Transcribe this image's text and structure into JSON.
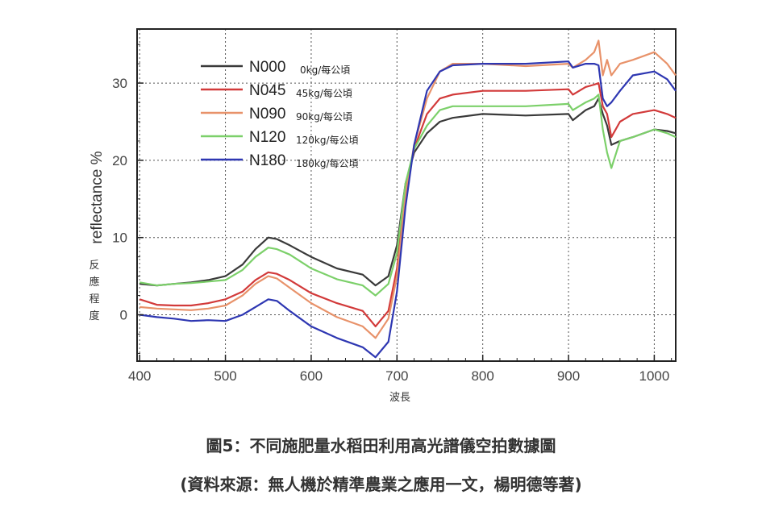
{
  "chart_data": {
    "type": "line",
    "title": "",
    "xlabel": "波長",
    "ylabel": "reflectance %",
    "ylabel_zh": [
      "反",
      "應",
      "程",
      "度"
    ],
    "xlim": [
      397,
      1025
    ],
    "ylim": [
      -6,
      37
    ],
    "xticks": [
      400,
      500,
      600,
      700,
      800,
      900,
      1000
    ],
    "yticks": [
      0,
      10,
      20,
      30
    ],
    "xtick_labels": [
      "400",
      "500",
      "600",
      "700",
      "800",
      "900",
      "1000"
    ],
    "ytick_labels": [
      "0",
      "10",
      "20",
      "30"
    ],
    "grid": true,
    "legend_position": "top-left",
    "x": [
      400,
      420,
      440,
      460,
      480,
      500,
      520,
      535,
      550,
      560,
      575,
      600,
      630,
      660,
      675,
      690,
      700,
      710,
      720,
      735,
      750,
      765,
      800,
      850,
      900,
      905,
      920,
      930,
      935,
      940,
      945,
      950,
      960,
      975,
      1000,
      1015,
      1025
    ],
    "series": [
      {
        "name": "N000",
        "desc": "0kg/每公頃",
        "color": "#3a3a3a",
        "values": [
          4,
          3.8,
          4,
          4.2,
          4.5,
          5,
          6.5,
          8.5,
          10,
          9.8,
          9,
          7.5,
          6,
          5.2,
          3.8,
          5,
          9,
          17,
          21,
          23.5,
          25,
          25.5,
          26,
          25.8,
          26,
          25.2,
          26.5,
          27,
          28,
          26,
          24.5,
          22,
          22.5,
          23,
          24,
          23.8,
          23.5
        ]
      },
      {
        "name": "N045",
        "desc": "45kg/每公頃",
        "color": "#d23a3a",
        "values": [
          2,
          1.3,
          1.2,
          1.2,
          1.5,
          2,
          3,
          4.5,
          5.5,
          5.3,
          4.5,
          2.8,
          1.5,
          0.5,
          -1.5,
          0.5,
          6,
          16,
          21.5,
          26,
          28,
          28.5,
          29,
          29,
          29.2,
          28.5,
          29.5,
          29.8,
          30,
          27,
          26,
          23,
          25,
          26,
          26.5,
          26,
          25.5
        ]
      },
      {
        "name": "N090",
        "desc": "90kg/每公頃",
        "color": "#e8926a",
        "values": [
          1,
          0.8,
          0.7,
          0.6,
          0.8,
          1.2,
          2.5,
          4,
          5,
          4.7,
          3.5,
          1.5,
          -0.3,
          -1.5,
          -3,
          -0.5,
          5,
          15.5,
          22,
          28,
          31.5,
          32.5,
          32.5,
          32.2,
          32.5,
          32,
          33,
          34,
          35.5,
          31,
          33,
          31,
          32.5,
          33,
          34,
          32.5,
          31
        ]
      },
      {
        "name": "N120",
        "desc": "120kg/每公頃",
        "color": "#7cd06a",
        "values": [
          4.2,
          3.8,
          4,
          4.1,
          4.3,
          4.5,
          5.8,
          7.5,
          8.7,
          8.5,
          7.8,
          6,
          4.6,
          3.8,
          2.5,
          4,
          8,
          17,
          21.5,
          24.5,
          26.5,
          27,
          27,
          27,
          27.3,
          26.5,
          27.5,
          28,
          28.5,
          24,
          21,
          19,
          22.5,
          23,
          24,
          23.5,
          23
        ]
      },
      {
        "name": "N180",
        "desc": "180kg/每公頃",
        "color": "#2e37b2",
        "values": [
          0,
          -0.3,
          -0.5,
          -0.8,
          -0.7,
          -0.8,
          0,
          1,
          2,
          1.8,
          0.5,
          -1.5,
          -3,
          -4.2,
          -5.5,
          -3.5,
          3,
          14,
          22,
          29,
          31.5,
          32.3,
          32.5,
          32.5,
          32.8,
          32,
          32.5,
          32.5,
          32.3,
          28,
          27,
          27.5,
          29,
          31,
          31.5,
          30.5,
          29
        ]
      }
    ]
  },
  "captions": {
    "title": "圖5：不同施肥量水稻田利用高光譜儀空拍數據圖",
    "source": "(資料來源：無人機於精準農業之應用一文，楊明德等著)"
  }
}
